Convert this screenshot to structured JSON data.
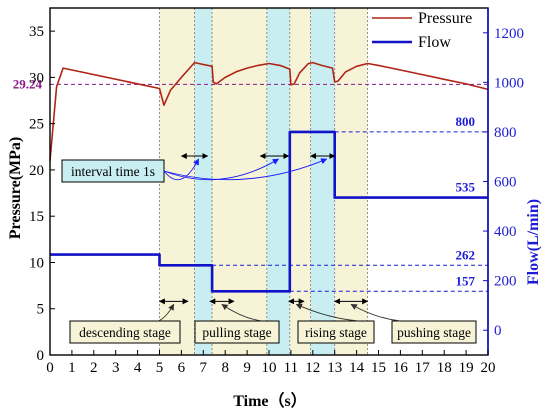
{
  "chart_data": {
    "type": "line",
    "xlabel": "Time（s）",
    "ylabel_left": "Pressure(MPa)",
    "ylabel_right": "Flow(L/min)",
    "xlim": [
      0,
      20
    ],
    "ylim_left": [
      0,
      37.5
    ],
    "ylim_right": [
      -100,
      1300
    ],
    "xticks": [
      0,
      1,
      2,
      3,
      4,
      5,
      6,
      7,
      8,
      9,
      10,
      11,
      12,
      13,
      14,
      15,
      16,
      17,
      18,
      19,
      20
    ],
    "yticks_left": [
      0,
      5,
      10,
      15,
      20,
      25,
      30,
      35
    ],
    "yticks_right": [
      0,
      200,
      400,
      600,
      800,
      1000,
      1200
    ],
    "colors": {
      "pressure": "#b02418",
      "flow": "#1212c8",
      "pressure_label": "#8b1a8b",
      "flow_label": "#1c1cd6",
      "stage_yellow": "#f6f3d6",
      "stage_cyan": "#c9eef2",
      "annot_blue": "#1a1aff"
    },
    "series": [
      {
        "name": "Pressure",
        "axis": "left",
        "x": [
          0,
          0.15,
          0.3,
          0.6,
          5.0,
          5.2,
          5.5,
          6.0,
          6.6,
          7.4,
          7.45,
          7.6,
          8.0,
          8.5,
          9.0,
          9.5,
          10.0,
          10.5,
          10.95,
          11.0,
          11.15,
          11.4,
          11.8,
          12.0,
          12.4,
          12.9,
          13.0,
          13.15,
          13.5,
          14.0,
          14.5,
          15.0,
          16.0,
          17.0,
          18.0,
          19.0,
          20.0
        ],
        "y": [
          21.0,
          25.0,
          29.0,
          31.0,
          28.8,
          27.0,
          28.6,
          30.0,
          31.6,
          31.2,
          29.5,
          29.3,
          30.0,
          30.6,
          31.0,
          31.3,
          31.5,
          31.3,
          30.9,
          29.2,
          29.3,
          30.5,
          31.5,
          31.6,
          31.3,
          31.0,
          29.5,
          29.6,
          30.6,
          31.2,
          31.5,
          31.3,
          30.8,
          30.3,
          29.8,
          29.3,
          28.7
        ]
      },
      {
        "name": "Flow",
        "axis": "right",
        "x": [
          0,
          5.0,
          5.0,
          7.4,
          7.4,
          10.95,
          10.95,
          13.0,
          13.0,
          20.0
        ],
        "y": [
          305,
          305,
          262,
          262,
          157,
          157,
          800,
          800,
          535,
          535
        ]
      }
    ],
    "reference_lines": [
      {
        "axis": "left",
        "value": 29.24,
        "label": "29.24",
        "x_from": 0,
        "x_to": 20
      },
      {
        "axis": "right",
        "value": 800,
        "label": "800",
        "x_from": 13.0,
        "x_to": 20
      },
      {
        "axis": "right",
        "value": 535,
        "label": "535",
        "x_from": 20,
        "x_to": 20
      },
      {
        "axis": "right",
        "value": 262,
        "label": "262",
        "x_from": 7.4,
        "x_to": 20
      },
      {
        "axis": "right",
        "value": 157,
        "label": "157",
        "x_from": 10.95,
        "x_to": 20
      }
    ],
    "stage_bands": [
      {
        "x0": 5.0,
        "x1": 6.6,
        "fill": "yellow"
      },
      {
        "x0": 6.6,
        "x1": 7.4,
        "fill": "cyan"
      },
      {
        "x0": 7.4,
        "x1": 9.9,
        "fill": "yellow"
      },
      {
        "x0": 9.9,
        "x1": 10.95,
        "fill": "cyan"
      },
      {
        "x0": 10.95,
        "x1": 11.9,
        "fill": "yellow"
      },
      {
        "x0": 11.9,
        "x1": 13.0,
        "fill": "cyan"
      },
      {
        "x0": 13.0,
        "x1": 14.5,
        "fill": "yellow"
      }
    ],
    "stage_dividers": [
      5.0,
      6.6,
      7.4,
      9.9,
      10.95,
      11.9,
      13.0,
      14.5
    ],
    "interval_arrows": [
      {
        "x0": 6.0,
        "x1": 7.2,
        "y_pressure": 21.5
      },
      {
        "x0": 9.6,
        "x1": 10.9,
        "y_pressure": 21.5
      },
      {
        "x0": 11.9,
        "x1": 13.0,
        "y_pressure": 21.5
      }
    ],
    "stage_arrows": [
      {
        "x0": 5.0,
        "x1": 6.3,
        "y_pressure": 5.8
      },
      {
        "x0": 7.3,
        "x1": 8.4,
        "y_pressure": 5.8
      },
      {
        "x0": 10.9,
        "x1": 11.6,
        "y_pressure": 5.8
      },
      {
        "x0": 13.0,
        "x1": 14.5,
        "y_pressure": 5.8
      }
    ],
    "annotations": {
      "interval": "interval time 1s",
      "stages": [
        "descending stage",
        "pulling stage",
        "rising stage",
        "pushing stage"
      ]
    },
    "legend": {
      "position": "top-right",
      "entries": [
        "Pressure",
        "Flow"
      ]
    }
  }
}
